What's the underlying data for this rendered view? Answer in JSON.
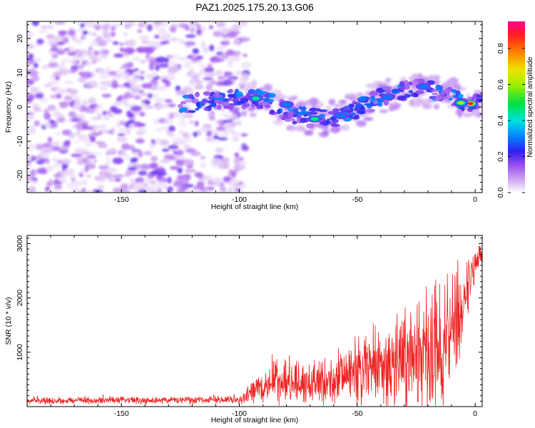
{
  "title": "PAZ1.2025.175.20.13.G06",
  "chart_data": [
    {
      "type": "heatmap",
      "xlabel": "Height of straight line (km)",
      "ylabel": "Frequency (Hz)",
      "xlim": [
        -190,
        3
      ],
      "ylim": [
        -25,
        25
      ],
      "xticks": [
        -150,
        -100,
        -50,
        0
      ],
      "yticks": [
        -20,
        -10,
        0,
        10,
        20
      ],
      "colorbar": {
        "label": "Normalized spectral amplitude",
        "range": [
          0.0,
          0.95
        ],
        "ticks": [
          0.0,
          0.2,
          0.4,
          0.6,
          0.8
        ],
        "colormap": "rainbow"
      },
      "ridge": [
        {
          "x": -120,
          "freq": 1.0
        },
        {
          "x": -100,
          "freq": 2.5
        },
        {
          "x": -92,
          "freq": 2.5
        },
        {
          "x": -85,
          "freq": 0.5
        },
        {
          "x": -78,
          "freq": -2.0
        },
        {
          "x": -70,
          "freq": -3.0
        },
        {
          "x": -62,
          "freq": -3.5
        },
        {
          "x": -55,
          "freq": -2.0
        },
        {
          "x": -48,
          "freq": 0.0
        },
        {
          "x": -40,
          "freq": 3.0
        },
        {
          "x": -33,
          "freq": 4.5
        },
        {
          "x": -25,
          "freq": 5.5
        },
        {
          "x": -18,
          "freq": 5.0
        },
        {
          "x": -12,
          "freq": 3.5
        },
        {
          "x": -6,
          "freq": 2.0
        },
        {
          "x": 0,
          "freq": 1.0
        }
      ],
      "peaks": [
        {
          "x": -2,
          "freq": 1.0,
          "amp": 0.95
        },
        {
          "x": -6,
          "freq": 1.2,
          "amp": 0.6
        },
        {
          "x": -93,
          "freq": 2.5,
          "amp": 0.45
        },
        {
          "x": -80,
          "freq": 0.8,
          "amp": 0.4
        },
        {
          "x": -68,
          "freq": -3.5,
          "amp": 0.45
        },
        {
          "x": -57,
          "freq": -2.5,
          "amp": 0.4
        },
        {
          "x": -37,
          "freq": 3.0,
          "amp": 0.35
        },
        {
          "x": -22,
          "freq": 6.0,
          "amp": 0.3
        }
      ]
    },
    {
      "type": "line",
      "xlabel": "Height of straight line (km)",
      "ylabel": "SNR (10 * v/v)",
      "xlim": [
        -190,
        3
      ],
      "ylim": [
        0,
        3150
      ],
      "xticks": [
        -150,
        -100,
        -50,
        0
      ],
      "yticks": [
        1000,
        2000,
        3000
      ],
      "series": [
        {
          "color": "#ee2222",
          "envelope": [
            {
              "x": -190,
              "mean": 110,
              "spread": 60
            },
            {
              "x": -100,
              "mean": 120,
              "spread": 70
            },
            {
              "x": -95,
              "mean": 250,
              "spread": 180
            },
            {
              "x": -85,
              "mean": 450,
              "spread": 330
            },
            {
              "x": -75,
              "mean": 420,
              "spread": 380
            },
            {
              "x": -65,
              "mean": 450,
              "spread": 420
            },
            {
              "x": -55,
              "mean": 550,
              "spread": 550
            },
            {
              "x": -45,
              "mean": 650,
              "spread": 700
            },
            {
              "x": -35,
              "mean": 750,
              "spread": 850
            },
            {
              "x": -25,
              "mean": 850,
              "spread": 1000
            },
            {
              "x": -15,
              "mean": 1000,
              "spread": 1200
            },
            {
              "x": -8,
              "mean": 1600,
              "spread": 900
            },
            {
              "x": 0,
              "mean": 2600,
              "spread": 300
            },
            {
              "x": 3,
              "mean": 2900,
              "spread": 200
            }
          ]
        }
      ]
    }
  ]
}
